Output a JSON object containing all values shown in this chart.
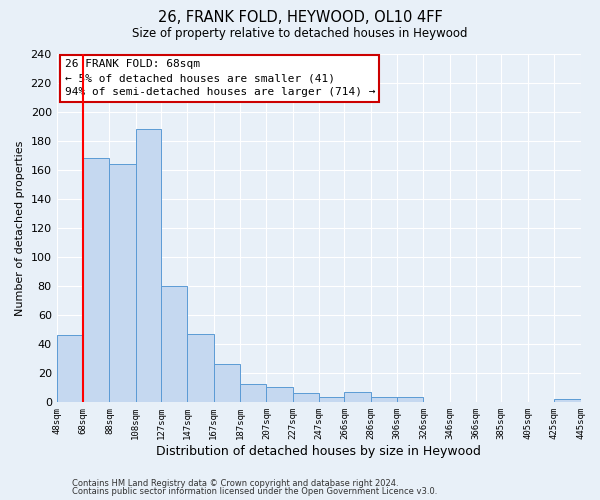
{
  "title": "26, FRANK FOLD, HEYWOOD, OL10 4FF",
  "subtitle": "Size of property relative to detached houses in Heywood",
  "xlabel": "Distribution of detached houses by size in Heywood",
  "ylabel": "Number of detached properties",
  "bar_color": "#c5d8f0",
  "bar_edge_color": "#5b9bd5",
  "background_color": "#e8f0f8",
  "grid_color": "#ffffff",
  "red_line_x": 68,
  "annotation_title": "26 FRANK FOLD: 68sqm",
  "annotation_line1": "← 5% of detached houses are smaller (41)",
  "annotation_line2": "94% of semi-detached houses are larger (714) →",
  "annotation_box_color": "#ffffff",
  "annotation_box_edge": "#cc0000",
  "bins": [
    48,
    68,
    88,
    108,
    127,
    147,
    167,
    187,
    207,
    227,
    247,
    266,
    286,
    306,
    326,
    346,
    366,
    385,
    405,
    425,
    445
  ],
  "values": [
    46,
    168,
    164,
    188,
    80,
    47,
    26,
    12,
    10,
    6,
    3,
    7,
    3,
    3,
    0,
    0,
    0,
    0,
    0,
    2
  ],
  "ylim": [
    0,
    240
  ],
  "yticks": [
    0,
    20,
    40,
    60,
    80,
    100,
    120,
    140,
    160,
    180,
    200,
    220,
    240
  ],
  "footer1": "Contains HM Land Registry data © Crown copyright and database right 2024.",
  "footer2": "Contains public sector information licensed under the Open Government Licence v3.0."
}
